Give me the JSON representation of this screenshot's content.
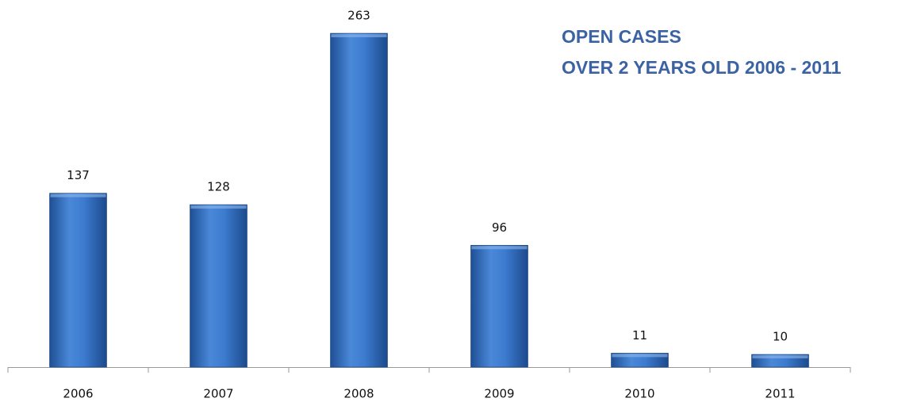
{
  "chart_data": {
    "type": "bar",
    "title": "OPEN CASES",
    "subtitle": "OVER 2 YEARS OLD 2006 - 2011",
    "categories": [
      "2006",
      "2007",
      "2008",
      "2009",
      "2010",
      "2011"
    ],
    "values": [
      137,
      128,
      263,
      96,
      11,
      10
    ],
    "color": "#3f7fd0"
  }
}
